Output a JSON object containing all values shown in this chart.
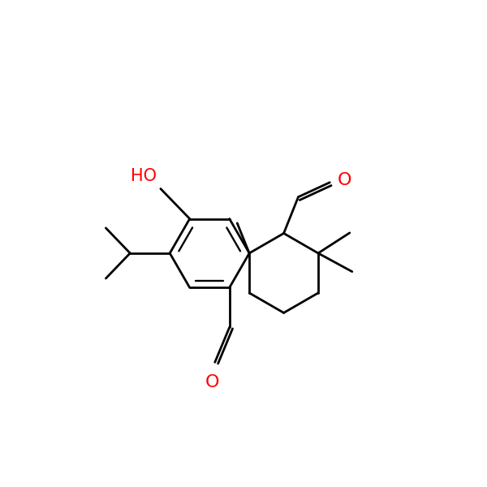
{
  "bg_color": "#ffffff",
  "bond_color": "#000000",
  "o_color": "#ff0000",
  "ho_color": "#ff0000",
  "line_width": 2.0,
  "fontsize_label": 14,
  "figsize": [
    6.0,
    6.0
  ],
  "dpi": 100,
  "xlim": [
    -1.5,
    8.5
  ],
  "ylim": [
    0.5,
    7.5
  ]
}
